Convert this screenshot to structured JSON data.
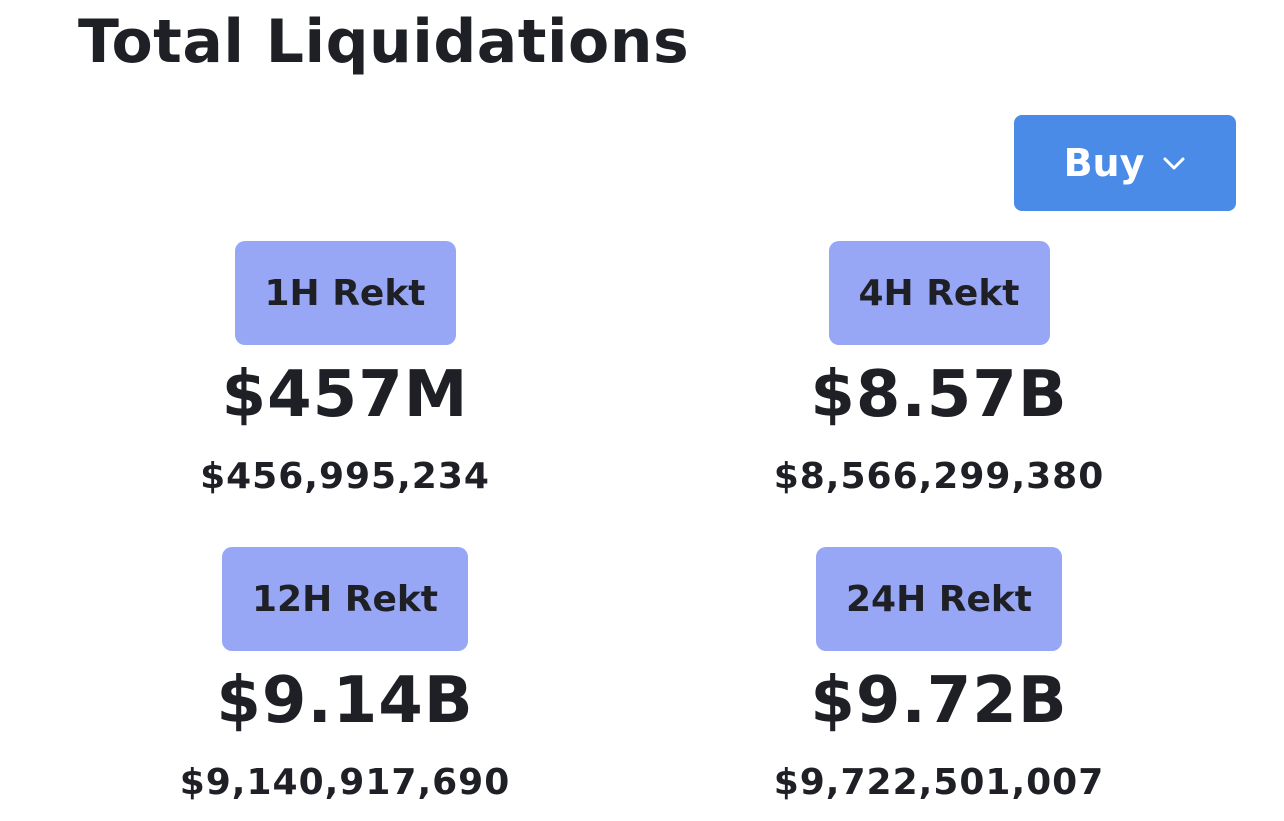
{
  "header": {
    "title": "Total Liquidations"
  },
  "filter": {
    "selected": "Buy",
    "icon": "chevron-down-icon",
    "color": "#4a8be8"
  },
  "stats": [
    {
      "label": "1H Rekt",
      "value_short": "$457M",
      "value_full": "$456,995,234"
    },
    {
      "label": "4H Rekt",
      "value_short": "$8.57B",
      "value_full": "$8,566,299,380"
    },
    {
      "label": "12H Rekt",
      "value_short": "$9.14B",
      "value_full": "$9,140,917,690"
    },
    {
      "label": "24H Rekt",
      "value_short": "$9.72B",
      "value_full": "$9,722,501,007"
    }
  ],
  "colors": {
    "badge": "#97a7f5",
    "text": "#1e2026"
  }
}
